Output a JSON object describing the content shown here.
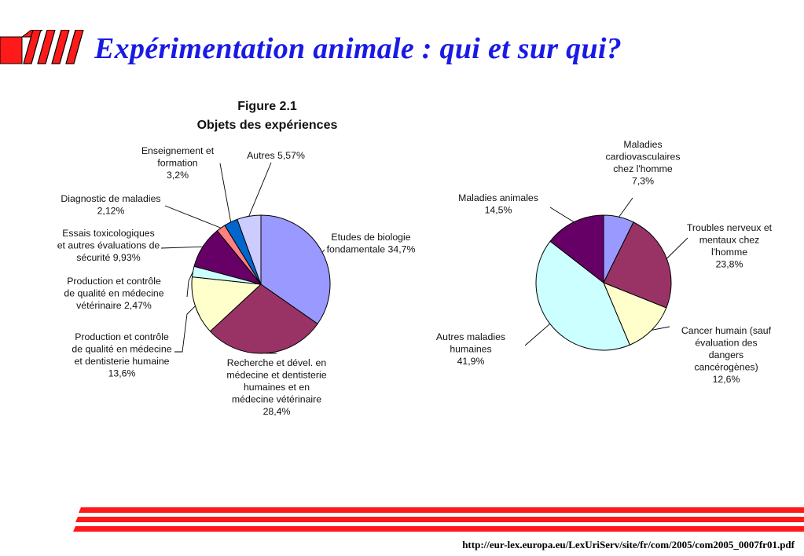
{
  "slide": {
    "title": "Expérimentation animale : qui et sur qui?",
    "source_url": "http://eur-lex.europa.eu/LexUriServ/site/fr/com/2005/com2005_0007fr01.pdf"
  },
  "colors": {
    "accent_red": "#ff2020",
    "title_blue": "#1a1ae6"
  },
  "chart_data": [
    {
      "type": "pie",
      "label": "Figure 2.1",
      "title": "Objets des expériences",
      "slices": [
        {
          "label": [
            "Etudes de biologie",
            "fondamentale 34,7%"
          ],
          "value": 34.7,
          "color": "#9999ff"
        },
        {
          "label": [
            "Recherche et dével. en",
            "médecine et dentisterie",
            "humaines et en",
            "médecine vétérinaire",
            "28,4%"
          ],
          "value": 28.4,
          "color": "#993366"
        },
        {
          "label": [
            "Production et contrôle",
            "de qualité en médecine",
            "et dentisterie humaine",
            "13,6%"
          ],
          "value": 13.6,
          "color": "#ffffcc"
        },
        {
          "label": [
            "Production et contrôle",
            "de qualité en médecine",
            "vétérinaire 2,47%"
          ],
          "value": 2.47,
          "color": "#ccffff"
        },
        {
          "label": [
            "Essais toxicologiques",
            "et autres évaluations de",
            "sécurité 9,93%"
          ],
          "value": 9.93,
          "color": "#660066"
        },
        {
          "label": [
            "Diagnostic de maladies",
            "2,12%"
          ],
          "value": 2.12,
          "color": "#ff8080"
        },
        {
          "label": [
            "Enseignement et",
            "formation",
            "3,2%"
          ],
          "value": 3.2,
          "color": "#0066cc"
        },
        {
          "label": [
            "Autres 5,57%"
          ],
          "value": 5.57,
          "color": "#ccccff"
        }
      ]
    },
    {
      "type": "pie",
      "slices": [
        {
          "label": [
            "Maladies",
            "cardiovasculaires",
            "chez l'homme",
            "7,3%"
          ],
          "value": 7.3,
          "color": "#9999ff"
        },
        {
          "label": [
            "Troubles nerveux et",
            "mentaux chez",
            "l'homme",
            "23,8%"
          ],
          "value": 23.8,
          "color": "#993366"
        },
        {
          "label": [
            "Cancer humain (sauf",
            "évaluation des",
            "dangers",
            "cancérogènes)",
            "12,6%"
          ],
          "value": 12.6,
          "color": "#ffffcc"
        },
        {
          "label": [
            "Autres maladies",
            "humaines",
            "41,9%"
          ],
          "value": 41.9,
          "color": "#ccffff"
        },
        {
          "label": [
            "Maladies animales",
            "14,5%"
          ],
          "value": 14.5,
          "color": "#660066"
        }
      ]
    }
  ]
}
